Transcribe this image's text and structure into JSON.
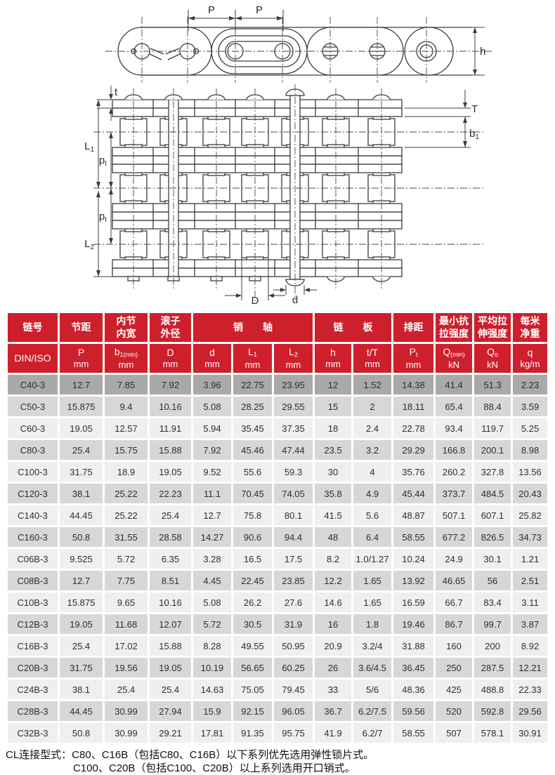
{
  "drawing": {
    "labels": {
      "pitch": "P",
      "h": "h",
      "t": "t",
      "T": "T",
      "b_base": "b",
      "b_sub": "1",
      "L1_base": "L",
      "L1_sub": "1",
      "L2_base": "L",
      "L2_sub": "2",
      "pt_base": "p",
      "pt_sub": "t",
      "D": "D",
      "d": "d"
    }
  },
  "table": {
    "group_headers": [
      {
        "label": "链号",
        "colspan": 1
      },
      {
        "label": "节距",
        "colspan": 1
      },
      {
        "label": "内节\n内宽",
        "colspan": 1
      },
      {
        "label": "滚子\n外径",
        "colspan": 1
      },
      {
        "label": "销　　轴",
        "colspan": 3
      },
      {
        "label": "链　　板",
        "colspan": 2
      },
      {
        "label": "排距",
        "colspan": 1
      },
      {
        "label": "最小抗\n拉强度",
        "colspan": 1
      },
      {
        "label": "平均拉\n伸强度",
        "colspan": 1
      },
      {
        "label": "每米\n净重",
        "colspan": 1
      }
    ],
    "sub_headers": [
      {
        "base": "DIN/ISO",
        "sub": "",
        "unit": ""
      },
      {
        "base": "P",
        "sub": "",
        "unit": "mm"
      },
      {
        "base": "b",
        "sub": "1(min)",
        "unit": "mm"
      },
      {
        "base": "D",
        "sub": "",
        "unit": "mm"
      },
      {
        "base": "d",
        "sub": "",
        "unit": "mm"
      },
      {
        "base": "L",
        "sub": "1",
        "unit": "mm"
      },
      {
        "base": "L",
        "sub": "2",
        "unit": "mm"
      },
      {
        "base": "h",
        "sub": "",
        "unit": "mm"
      },
      {
        "base": "t/T",
        "sub": "",
        "unit": "mm"
      },
      {
        "base": "P",
        "sub": "t",
        "unit": "mm"
      },
      {
        "base": "Q",
        "sub": "(min)",
        "unit": "kN"
      },
      {
        "base": "Q",
        "sub": "o",
        "unit": "kN"
      },
      {
        "base": "q",
        "sub": "",
        "unit": "kg/m"
      }
    ],
    "rows": [
      [
        "C40-3",
        "12.7",
        "7.85",
        "7.92",
        "3.96",
        "22.75",
        "23.95",
        "12",
        "1.52",
        "14.38",
        "41.4",
        "51.3",
        "2.23"
      ],
      [
        "C50-3",
        "15.875",
        "9.4",
        "10.16",
        "5.08",
        "28.25",
        "29.55",
        "15",
        "2",
        "18.11",
        "65.4",
        "88.4",
        "3.59"
      ],
      [
        "C60-3",
        "19.05",
        "12.57",
        "11.91",
        "5.94",
        "35.45",
        "37.35",
        "18",
        "2.4",
        "22.78",
        "93.4",
        "119.7",
        "5.25"
      ],
      [
        "C80-3",
        "25.4",
        "15.75",
        "15.88",
        "7.92",
        "45.46",
        "47.44",
        "23.5",
        "3.2",
        "29.29",
        "166.8",
        "200.1",
        "8.98"
      ],
      [
        "C100-3",
        "31.75",
        "18.9",
        "19.05",
        "9.52",
        "55.6",
        "59.3",
        "30",
        "4",
        "35.76",
        "260.2",
        "327.8",
        "13.56"
      ],
      [
        "C120-3",
        "38.1",
        "25.22",
        "22.23",
        "11.1",
        "70.45",
        "74.05",
        "35.8",
        "4.9",
        "45.44",
        "373.7",
        "484.5",
        "20.43"
      ],
      [
        "C140-3",
        "44.45",
        "25.22",
        "25.4",
        "12.7",
        "75.8",
        "80.1",
        "41.5",
        "5.6",
        "48.87",
        "507.1",
        "607.1",
        "25.82"
      ],
      [
        "C160-3",
        "50.8",
        "31.55",
        "28.58",
        "14.27",
        "90.6",
        "94.4",
        "48",
        "6.4",
        "58.55",
        "677.2",
        "826.5",
        "34.73"
      ],
      [
        "C06B-3",
        "9.525",
        "5.72",
        "6.35",
        "3.28",
        "16.5",
        "17.5",
        "8.2",
        "1.0/1.27",
        "10.24",
        "24.9",
        "30.1",
        "1.21"
      ],
      [
        "C08B-3",
        "12.7",
        "7.75",
        "8.51",
        "4.45",
        "22.45",
        "23.85",
        "12.2",
        "1.65",
        "13.92",
        "46.65",
        "56",
        "2.51"
      ],
      [
        "C10B-3",
        "15.875",
        "9.65",
        "10.16",
        "5.08",
        "26.2",
        "27.6",
        "14.6",
        "1.65",
        "16.59",
        "66.7",
        "83.4",
        "3.11"
      ],
      [
        "C12B-3",
        "19.05",
        "11.68",
        "12.07",
        "5.72",
        "30.5",
        "31.9",
        "16",
        "1.8",
        "19.46",
        "86.7",
        "99.7",
        "3.87"
      ],
      [
        "C16B-3",
        "25.4",
        "17.02",
        "15.88",
        "8.28",
        "49.55",
        "50.95",
        "20.9",
        "3.2/4",
        "31.88",
        "160",
        "200",
        "8.92"
      ],
      [
        "C20B-3",
        "31.75",
        "19.56",
        "19.05",
        "10.19",
        "56.65",
        "60.25",
        "26",
        "3.6/4.5",
        "36.45",
        "250",
        "287.5",
        "12.21"
      ],
      [
        "C24B-3",
        "38.1",
        "25.4",
        "25.4",
        "14.63",
        "75.05",
        "79.45",
        "33",
        "5/6",
        "48.36",
        "425",
        "488.8",
        "22.33"
      ],
      [
        "C28B-3",
        "44.45",
        "30.99",
        "27.94",
        "15.9",
        "92.15",
        "96.05",
        "36.7",
        "6.2/7.5",
        "59.56",
        "520",
        "592.8",
        "29.56"
      ],
      [
        "C32B-3",
        "50.8",
        "30.99",
        "29.21",
        "17.81",
        "91.35",
        "95.75",
        "41.9",
        "6.2/7",
        "58.55",
        "507",
        "578.1",
        "30.91"
      ]
    ]
  },
  "notes": {
    "line1": "CL连接型式：C80、C16B（包括C80、C16B）以下系列优先选用弹性锁片式。",
    "line2": "C100、C20B（包括C100、C20B）以上系列选用开口销式。"
  }
}
